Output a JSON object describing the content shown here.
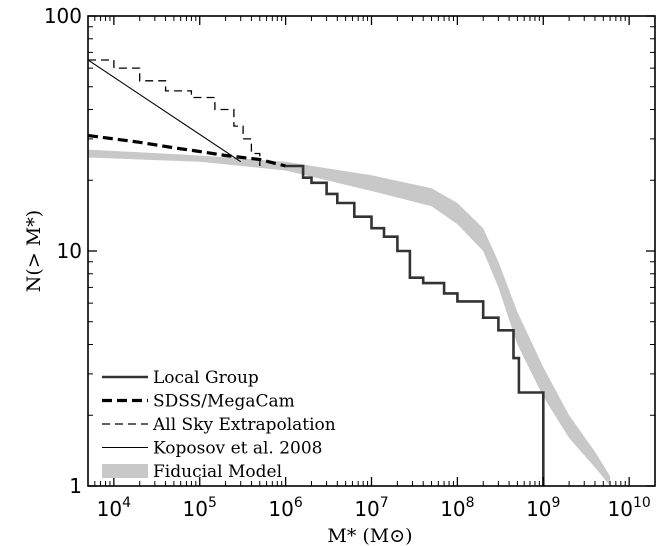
{
  "chart_data": {
    "type": "line",
    "xlabel": "M* (M⊙)",
    "ylabel": "N(> M*)",
    "x_scale": "log",
    "y_scale": "log",
    "xlim": [
      5000,
      20000000000
    ],
    "ylim": [
      1,
      100
    ],
    "grid": false,
    "legend_position": "bottom-left",
    "x_ticks": [
      {
        "value": 10000,
        "base": "10",
        "exp": "4"
      },
      {
        "value": 100000,
        "base": "10",
        "exp": "5"
      },
      {
        "value": 1000000,
        "base": "10",
        "exp": "6"
      },
      {
        "value": 10000000,
        "base": "10",
        "exp": "7"
      },
      {
        "value": 100000000,
        "base": "10",
        "exp": "8"
      },
      {
        "value": 1000000000,
        "base": "10",
        "exp": "9"
      },
      {
        "value": 10000000000,
        "base": "10",
        "exp": "10"
      }
    ],
    "y_ticks": [
      {
        "value": 1,
        "label": "1"
      },
      {
        "value": 10,
        "label": "10"
      },
      {
        "value": 100,
        "label": "100"
      }
    ],
    "series": [
      {
        "name": "Local Group",
        "style": "solid-thick",
        "color": "#333333",
        "x": [
          1000000,
          1600000,
          2000000,
          3000000,
          4000000,
          6300000,
          10000000,
          14000000,
          20000000,
          28000000,
          40000000,
          70000000,
          100000000,
          200000000,
          300000000,
          450000000,
          520000000,
          1000000000,
          1000000000
        ],
        "y": [
          23,
          20.5,
          19.5,
          17.5,
          16,
          14,
          12.5,
          11.5,
          10,
          7.7,
          7.3,
          6.6,
          6.1,
          5.2,
          4.6,
          3.5,
          2.5,
          2.5,
          1
        ]
      },
      {
        "name": "SDSS/MegaCam",
        "style": "dashed-thick",
        "color": "#000000",
        "x": [
          5000,
          10000,
          20000,
          50000,
          100000,
          200000,
          500000,
          1000000
        ],
        "y": [
          31,
          30,
          29,
          27.5,
          26.5,
          25.5,
          24.5,
          23
        ]
      },
      {
        "name": "All Sky Extrapolation",
        "style": "dashed-thin",
        "color": "#000000",
        "x": [
          5000,
          10000,
          20000,
          40000,
          80000,
          150000,
          250000,
          320000,
          400000,
          500000
        ],
        "y": [
          65,
          60,
          53,
          48,
          45,
          40,
          34,
          30,
          26,
          23
        ]
      },
      {
        "name": "Koposov et al. 2008",
        "style": "solid-thin",
        "color": "#000000",
        "x": [
          5000,
          300000
        ],
        "y": [
          65,
          24
        ]
      },
      {
        "name": "Fiducial Model",
        "style": "band",
        "color": "#c8c8c8",
        "x": [
          5000,
          100000,
          1000000,
          3000000,
          10000000,
          50000000,
          100000000,
          200000000,
          300000000,
          500000000,
          1000000000,
          2000000000,
          4000000000,
          6000000000
        ],
        "y_low": [
          25,
          24,
          22,
          20,
          18,
          15.5,
          13,
          10,
          7,
          4,
          2.4,
          1.6,
          1.2,
          1
        ],
        "y_high": [
          27,
          25.5,
          24,
          22.5,
          21,
          18.5,
          16,
          12.5,
          9,
          5.5,
          3.2,
          2.0,
          1.4,
          1.1
        ]
      }
    ]
  }
}
